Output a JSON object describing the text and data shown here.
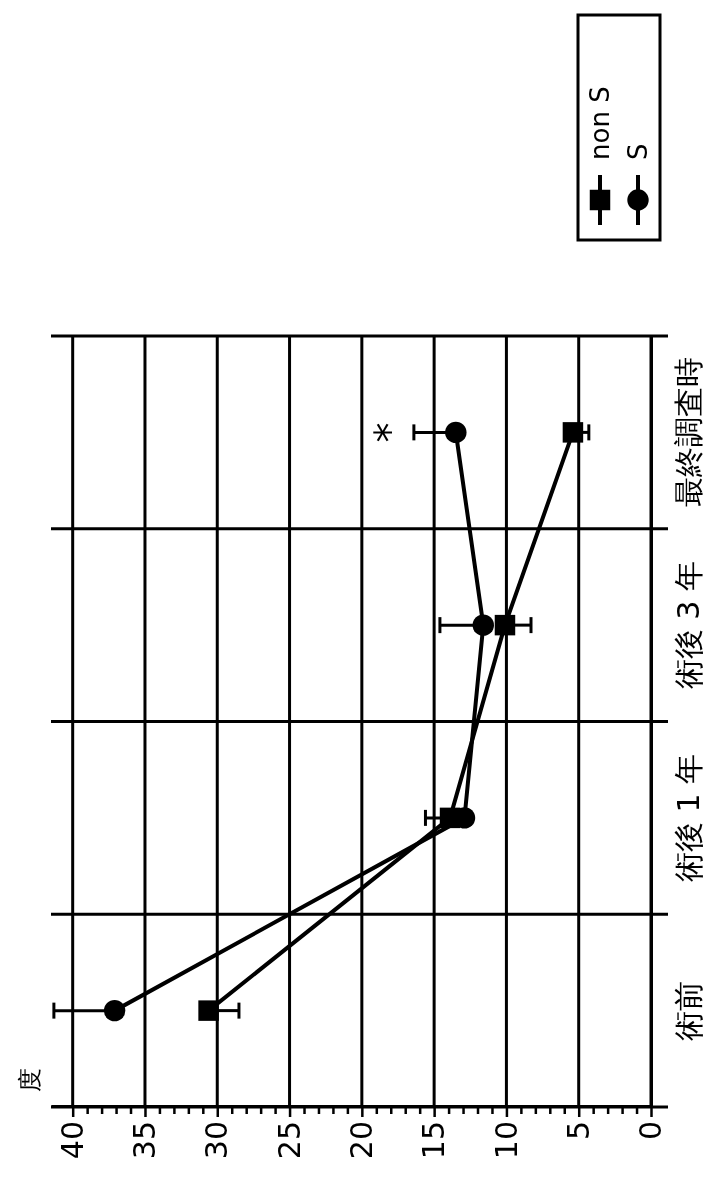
{
  "chart_data": {
    "type": "line",
    "orientation": "horizontal",
    "categories": [
      "最終調査時",
      "術後 3 年",
      "術後 1 年",
      "術前"
    ],
    "series": [
      {
        "name": "non S",
        "color": "#000000",
        "marker": "square",
        "values": [
          5.4,
          10.1,
          13.9,
          30.6
        ],
        "errors": [
          [
            4.3,
            5.4
          ],
          [
            8.3,
            10.1
          ],
          null,
          [
            28.5,
            30.6
          ]
        ]
      },
      {
        "name": "S",
        "color": "#000000",
        "marker": "circle",
        "values": [
          13.5,
          11.6,
          12.9,
          37.1
        ],
        "errors": [
          [
            13.5,
            16.4
          ],
          [
            11.6,
            14.6
          ],
          [
            12.9,
            15.6
          ],
          [
            37.1,
            41.3
          ]
        ]
      }
    ],
    "xlim": [
      41.5,
      0
    ],
    "xticks": [
      0,
      {
        "value": 1,
        "label": null
      },
      {
        "value": 2,
        "label": null
      },
      {
        "value": 3,
        "label": null
      },
      {
        "value": 4,
        "label": null
      },
      5,
      {
        "value": 6,
        "label": null
      },
      {
        "value": 7,
        "label": null
      },
      {
        "value": 8,
        "label": null
      },
      {
        "value": 9,
        "label": null
      },
      10,
      {
        "value": 11,
        "label": null
      },
      {
        "value": 12,
        "label": null
      },
      {
        "value": 13,
        "label": null
      },
      {
        "value": 14,
        "label": null
      },
      15,
      {
        "value": 16,
        "label": null
      },
      {
        "value": 17,
        "label": null
      },
      {
        "value": 18,
        "label": null
      },
      {
        "value": 19,
        "label": null
      },
      20,
      {
        "value": 21,
        "label": null
      },
      {
        "value": 22,
        "label": null
      },
      {
        "value": 23,
        "label": null
      },
      {
        "value": 24,
        "label": null
      },
      25,
      {
        "value": 26,
        "label": null
      },
      {
        "value": 27,
        "label": null
      },
      {
        "value": 28,
        "label": null
      },
      {
        "value": 29,
        "label": null
      },
      30,
      {
        "value": 31,
        "label": null
      },
      {
        "value": 32,
        "label": null
      },
      {
        "value": 33,
        "label": null
      },
      {
        "value": 34,
        "label": null
      },
      35,
      {
        "value": 36,
        "label": null
      },
      {
        "value": 37,
        "label": null
      },
      {
        "value": 38,
        "label": null
      },
      {
        "value": 39,
        "label": null
      },
      40
    ],
    "grid": "x",
    "line_style": "solid",
    "legend": "top right",
    "annotations": [
      "度",
      "*"
    ]
  }
}
